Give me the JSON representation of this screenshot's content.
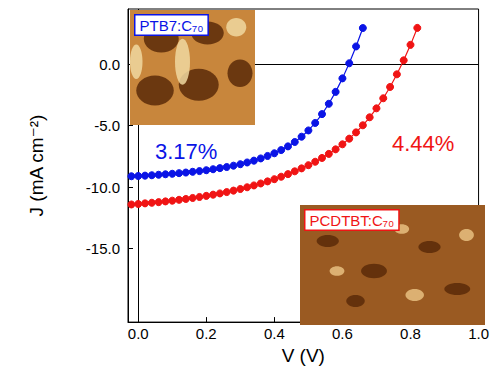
{
  "chart_data": {
    "type": "line",
    "x_label": "V (V)",
    "y_label": "J (mA cm⁻²)",
    "xlim": [
      -0.03,
      1.0
    ],
    "ylim": [
      -21,
      4.5
    ],
    "xticks": [
      {
        "value": 0,
        "label": "0.0"
      },
      {
        "value": 0.2,
        "label": "0.2"
      },
      {
        "value": 0.4,
        "label": "0.4"
      },
      {
        "value": 0.6,
        "label": "0.6"
      },
      {
        "value": 0.8,
        "label": "0.8"
      },
      {
        "value": 1.0,
        "label": "1.0"
      }
    ],
    "yticks": [
      {
        "value": -15,
        "label": "-15.0"
      },
      {
        "value": -10,
        "label": "-10.0"
      },
      {
        "value": -5,
        "label": "-5.0"
      },
      {
        "value": 0,
        "label": "0.0"
      }
    ],
    "grid": false,
    "marker": "circle",
    "line_style": "solid",
    "series": [
      {
        "name": "PTB7:C₇₀",
        "color": "#0a14e6",
        "annotation": "3.17%",
        "x": [
          -0.02,
          0,
          0.02,
          0.04,
          0.06,
          0.08,
          0.1,
          0.12,
          0.14,
          0.16,
          0.18,
          0.2,
          0.22,
          0.24,
          0.26,
          0.28,
          0.3,
          0.32,
          0.34,
          0.36,
          0.38,
          0.4,
          0.42,
          0.44,
          0.46,
          0.48,
          0.5,
          0.52,
          0.54,
          0.56,
          0.58,
          0.6,
          0.62,
          0.64,
          0.66
        ],
        "values": [
          -9.12,
          -9.1,
          -9.07,
          -9.04,
          -9.0,
          -8.96,
          -8.92,
          -8.87,
          -8.82,
          -8.76,
          -8.7,
          -8.63,
          -8.55,
          -8.46,
          -8.37,
          -8.26,
          -8.14,
          -8.0,
          -7.85,
          -7.67,
          -7.47,
          -7.25,
          -6.99,
          -6.69,
          -6.33,
          -5.9,
          -5.39,
          -4.78,
          -4.06,
          -3.22,
          -2.25,
          -1.15,
          0.08,
          1.45,
          2.95
        ]
      },
      {
        "name": "PCDTBT:C₇₀",
        "color": "#f01414",
        "annotation": "4.44%",
        "x": [
          -0.02,
          0,
          0.02,
          0.04,
          0.06,
          0.08,
          0.1,
          0.12,
          0.14,
          0.16,
          0.18,
          0.2,
          0.22,
          0.24,
          0.26,
          0.28,
          0.3,
          0.32,
          0.34,
          0.36,
          0.38,
          0.4,
          0.42,
          0.44,
          0.46,
          0.48,
          0.5,
          0.52,
          0.54,
          0.56,
          0.58,
          0.6,
          0.62,
          0.64,
          0.66,
          0.68,
          0.7,
          0.72,
          0.74,
          0.76,
          0.78,
          0.8,
          0.82
        ],
        "values": [
          -11.42,
          -11.38,
          -11.33,
          -11.28,
          -11.23,
          -11.17,
          -11.11,
          -11.04,
          -10.97,
          -10.89,
          -10.81,
          -10.72,
          -10.62,
          -10.52,
          -10.41,
          -10.29,
          -10.16,
          -10.02,
          -9.87,
          -9.71,
          -9.54,
          -9.36,
          -9.16,
          -8.95,
          -8.72,
          -8.48,
          -8.22,
          -7.94,
          -7.63,
          -7.3,
          -6.93,
          -6.52,
          -6.06,
          -5.55,
          -4.97,
          -4.32,
          -3.59,
          -2.77,
          -1.85,
          -0.82,
          0.32,
          1.58,
          2.96
        ]
      }
    ]
  }
}
